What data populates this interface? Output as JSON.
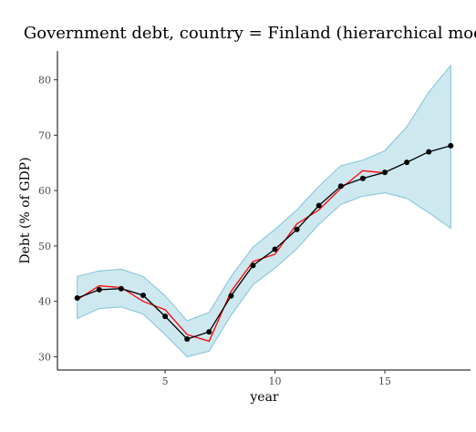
{
  "chart_data": {
    "type": "line",
    "title": "Government debt, country = Finland (hierarchical model)",
    "xlabel": "year",
    "ylabel": "Debt (% of GDP)",
    "xlim": [
      0.1,
      18.9
    ],
    "ylim": [
      27.6,
      85.2
    ],
    "x_ticks": [
      5,
      10,
      15
    ],
    "y_ticks": [
      30,
      40,
      50,
      60,
      70,
      80
    ],
    "grid": false,
    "legend": "none",
    "colors": {
      "band": "#add8e6",
      "band_stroke": "#7ec3d8",
      "observed": "#ff0000",
      "predicted": "#000000"
    },
    "series": [
      {
        "role": "interval",
        "x": [
          1,
          2,
          3,
          4,
          5,
          6,
          7,
          8,
          9,
          10,
          11,
          12,
          13,
          14,
          15,
          16,
          17,
          18
        ],
        "lower": [
          36.9,
          38.7,
          39.0,
          37.7,
          34.0,
          30.0,
          31.0,
          37.5,
          43.0,
          46.0,
          49.5,
          53.9,
          57.5,
          59.0,
          59.6,
          58.6,
          56.0,
          53.2
        ],
        "upper": [
          44.5,
          45.5,
          45.8,
          44.5,
          41.0,
          36.5,
          38.0,
          44.5,
          49.8,
          53.0,
          56.5,
          60.8,
          64.5,
          65.5,
          67.2,
          71.5,
          77.8,
          82.6
        ]
      },
      {
        "role": "observed",
        "x": [
          1,
          2,
          3,
          4,
          5,
          6,
          7,
          8,
          9,
          10,
          11,
          12,
          13,
          14,
          15
        ],
        "values": [
          40.3,
          42.8,
          42.5,
          40.0,
          38.5,
          34.0,
          32.8,
          41.8,
          47.2,
          48.5,
          54.0,
          56.5,
          60.4,
          63.6,
          63.2
        ]
      },
      {
        "role": "predicted",
        "x": [
          1,
          2,
          3,
          4,
          5,
          6,
          7,
          8,
          9,
          10,
          11,
          12,
          13,
          14,
          15,
          16,
          17,
          18
        ],
        "values": [
          40.6,
          42.1,
          42.3,
          41.1,
          37.3,
          33.2,
          34.5,
          41.0,
          46.5,
          49.4,
          53.0,
          57.3,
          60.8,
          62.2,
          63.3,
          65.1,
          67.0,
          68.1
        ]
      }
    ]
  }
}
